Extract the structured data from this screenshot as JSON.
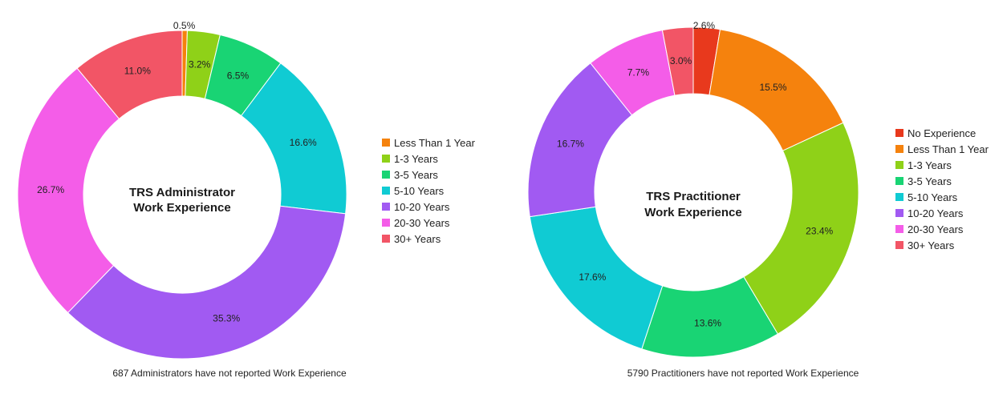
{
  "chart_data": [
    {
      "type": "pie",
      "title": "TRS Administrator Work Experience",
      "title_lines": [
        "TRS Administrator",
        "Work Experience"
      ],
      "footnote": "687 Administrators have not reported Work Experience",
      "legend_placement": "right",
      "categories": [
        "Less Than 1 Year",
        "1-3 Years",
        "3-5 Years",
        "5-10 Years",
        "10-20 Years",
        "20-30 Years",
        "30+ Years"
      ],
      "values": [
        0.5,
        3.2,
        6.5,
        16.6,
        35.3,
        26.7,
        11.0
      ],
      "labels": [
        "0.5%",
        "3.2%",
        "6.5%",
        "16.6%",
        "35.3%",
        "26.7%",
        "11.0%"
      ],
      "colors": [
        "#f5820d",
        "#8fd118",
        "#19d474",
        "#10cbd3",
        "#a15af2",
        "#f45de8",
        "#f25566"
      ]
    },
    {
      "type": "pie",
      "title": "TRS Practitioner Work Experience",
      "title_lines": [
        "TRS Practitioner",
        "Work Experience"
      ],
      "footnote": "5790 Practitioners have not reported Work Experience",
      "legend_placement": "right",
      "categories": [
        "No Experience",
        "Less Than 1 Year",
        "1-3 Years",
        "3-5 Years",
        "5-10 Years",
        "10-20 Years",
        "20-30 Years",
        "30+ Years"
      ],
      "values": [
        2.6,
        15.5,
        23.4,
        13.6,
        17.6,
        16.7,
        7.7,
        3.0
      ],
      "labels": [
        "2.6%",
        "15.5%",
        "23.4%",
        "13.6%",
        "17.6%",
        "16.7%",
        "7.7%",
        "3.0%"
      ],
      "colors": [
        "#e8391d",
        "#f5820d",
        "#8fd118",
        "#19d474",
        "#10cbd3",
        "#a15af2",
        "#f45de8",
        "#f25566"
      ]
    }
  ]
}
